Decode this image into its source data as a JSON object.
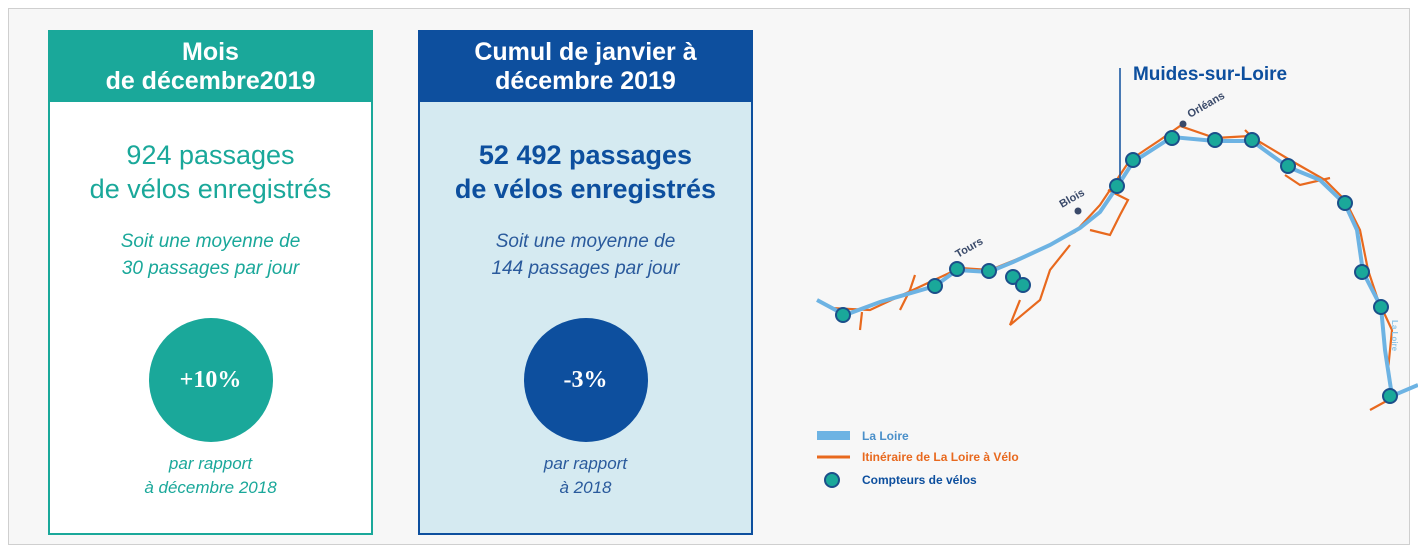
{
  "panels": [
    {
      "header": [
        "Mois",
        "de décembre2019"
      ],
      "count": [
        "924 passages",
        "de vélos enregistrés"
      ],
      "average": [
        "Soit une moyenne de",
        "30 passages par jour"
      ],
      "change": "+10%",
      "comparison": [
        "par rapport",
        "à décembre 2018"
      ]
    },
    {
      "header": [
        "Cumul de janvier à",
        "décembre 2019"
      ],
      "count": [
        "52 492 passages",
        "de vélos enregistrés"
      ],
      "average": [
        "Soit une moyenne de",
        "144 passages par jour"
      ],
      "change": "-3%",
      "comparison": [
        "par rapport",
        "à 2018"
      ]
    }
  ],
  "map": {
    "highlight": "Muides-sur-Loire",
    "cities": [
      "Orléans",
      "Blois",
      "Tours"
    ],
    "river_label": "La Loire",
    "legend": [
      "La Loire",
      "Itinéraire de La Loire à Vélo",
      "Compteurs de vélos"
    ]
  }
}
